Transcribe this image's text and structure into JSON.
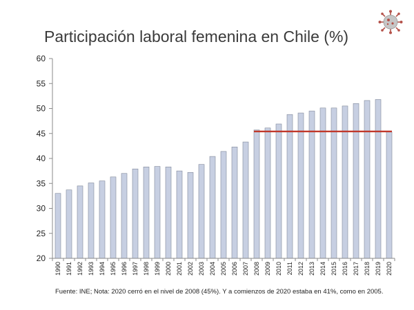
{
  "chart_data": {
    "type": "bar",
    "title": "Participación laboral femenina en Chile (%)",
    "xlabel": "",
    "ylabel": "",
    "ylim": [
      20,
      60
    ],
    "yticks": [
      20,
      25,
      30,
      35,
      40,
      45,
      50,
      55,
      60
    ],
    "categories": [
      "1990",
      "1991",
      "1992",
      "1993",
      "1994",
      "1995",
      "1996",
      "1997",
      "1998",
      "1999",
      "2000",
      "2001",
      "2002",
      "2003",
      "2004",
      "2005",
      "2006",
      "2007",
      "2008",
      "2009",
      "2010",
      "2011",
      "2012",
      "2013",
      "2014",
      "2015",
      "2016",
      "2017",
      "2018",
      "2019",
      "2020"
    ],
    "values": [
      33.0,
      33.7,
      34.5,
      35.1,
      35.5,
      36.3,
      37.0,
      37.9,
      38.3,
      38.4,
      38.3,
      37.5,
      37.2,
      38.8,
      40.4,
      41.4,
      42.3,
      43.3,
      45.7,
      46.1,
      46.9,
      48.8,
      49.1,
      49.5,
      50.1,
      50.1,
      50.5,
      51.0,
      51.6,
      51.8,
      45.3
    ],
    "reference_line": {
      "from": "2008",
      "to": "2020",
      "value": 45.4,
      "color": "#c0392b"
    },
    "bar_color": "#c7cfe2",
    "bar_stroke": "#7f8799",
    "source": "Fuente: INE; Nota: 2020 cerró en el nivel de 2008 (45%). Y a comienzos de 2020 estaba en 41%, como en 2005."
  }
}
